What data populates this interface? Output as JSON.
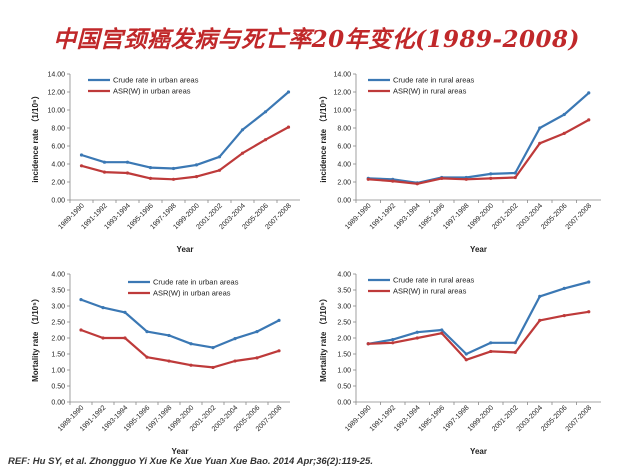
{
  "title": "中国宫颈癌发病与死亡率20年变化(1989-2008)",
  "reference": "REF: Hu SY, et al.  Zhongguo Yi Xue Ke Xue Yuan Xue Bao. 2014 Apr;36(2):119-25.",
  "colors": {
    "crude": "#3b78b4",
    "asr": "#be3a3a"
  },
  "chart_data": [
    {
      "type": "line",
      "xlabel": "Year",
      "ylabel": "incidence rate （1/10⁵）",
      "ylim": [
        0,
        14
      ],
      "yticks": [
        "0.00",
        "2.00",
        "4.00",
        "6.00",
        "8.00",
        "10.00",
        "12.00",
        "14.00"
      ],
      "categories": [
        "1989-1990",
        "1991-1992",
        "1993-1994",
        "1995-1996",
        "1997-1998",
        "1999-2000",
        "2001-2002",
        "2003-2004",
        "2005-2006",
        "2007-2008"
      ],
      "legend_position": "top-left",
      "series": [
        {
          "name": "Crude rate in urban areas",
          "values": [
            5.0,
            4.2,
            4.2,
            3.6,
            3.5,
            3.9,
            4.8,
            7.8,
            9.8,
            12.0
          ]
        },
        {
          "name": "ASR(W) in urban areas",
          "values": [
            3.8,
            3.1,
            3.0,
            2.4,
            2.3,
            2.6,
            3.3,
            5.2,
            6.7,
            8.1
          ]
        }
      ]
    },
    {
      "type": "line",
      "xlabel": "Year",
      "ylabel": "incidence rate （1/10⁵）",
      "ylim": [
        0,
        14
      ],
      "yticks": [
        "0.00",
        "2.00",
        "4.00",
        "6.00",
        "8.00",
        "10.00",
        "12.00",
        "14.00"
      ],
      "categories": [
        "1989-1990",
        "1991-1992",
        "1993-1994",
        "1995-1996",
        "1997-1998",
        "1999-2000",
        "2001-2002",
        "2003-2004",
        "2005-2006",
        "2007-2008"
      ],
      "legend_position": "top-left",
      "series": [
        {
          "name": "Crude rate in rural areas",
          "values": [
            2.4,
            2.3,
            1.9,
            2.5,
            2.5,
            2.9,
            3.0,
            8.0,
            9.5,
            11.9
          ]
        },
        {
          "name": "ASR(W) in rural areas",
          "values": [
            2.3,
            2.1,
            1.8,
            2.4,
            2.3,
            2.4,
            2.5,
            6.3,
            7.4,
            8.9
          ]
        }
      ]
    },
    {
      "type": "line",
      "xlabel": "Year",
      "ylabel": "Mortality rate （1/10⁵）",
      "ylim": [
        0,
        4
      ],
      "yticks": [
        "0.00",
        "0.50",
        "1.00",
        "1.50",
        "2.00",
        "2.50",
        "3.00",
        "3.50",
        "4.00"
      ],
      "categories": [
        "1989-1990",
        "1991-1992",
        "1993-1994",
        "1995-1996",
        "1997-1998",
        "1999-2000",
        "2001-2002",
        "2003-2004",
        "2005-2006",
        "2007-2008"
      ],
      "legend_position": "top-right",
      "series": [
        {
          "name": "Crude rate in urban areas",
          "values": [
            3.2,
            2.95,
            2.8,
            2.2,
            2.08,
            1.82,
            1.7,
            1.98,
            2.2,
            2.55
          ]
        },
        {
          "name": "ASR(W) in urban areas",
          "values": [
            2.25,
            2.0,
            2.0,
            1.4,
            1.28,
            1.15,
            1.08,
            1.28,
            1.38,
            1.6
          ]
        }
      ]
    },
    {
      "type": "line",
      "xlabel": "Year",
      "ylabel": "Mortality rate （1/10⁵）",
      "ylim": [
        0,
        4
      ],
      "yticks": [
        "0.00",
        "0.50",
        "1.00",
        "1.50",
        "2.00",
        "2.50",
        "3.00",
        "3.50",
        "4.00"
      ],
      "categories": [
        "1989-1990",
        "1991-1992",
        "1993-1994",
        "1995-1996",
        "1997-1998",
        "1999-2000",
        "2001-2002",
        "2003-2004",
        "2005-2006",
        "2007-2008"
      ],
      "legend_position": "top-left",
      "series": [
        {
          "name": "Crude rate in rural areas",
          "values": [
            1.82,
            1.95,
            2.18,
            2.25,
            1.5,
            1.85,
            1.85,
            3.3,
            3.55,
            3.75
          ]
        },
        {
          "name": "ASR(W) in rural areas",
          "values": [
            1.82,
            1.85,
            2.0,
            2.15,
            1.32,
            1.58,
            1.55,
            2.55,
            2.7,
            2.82
          ]
        }
      ]
    }
  ]
}
